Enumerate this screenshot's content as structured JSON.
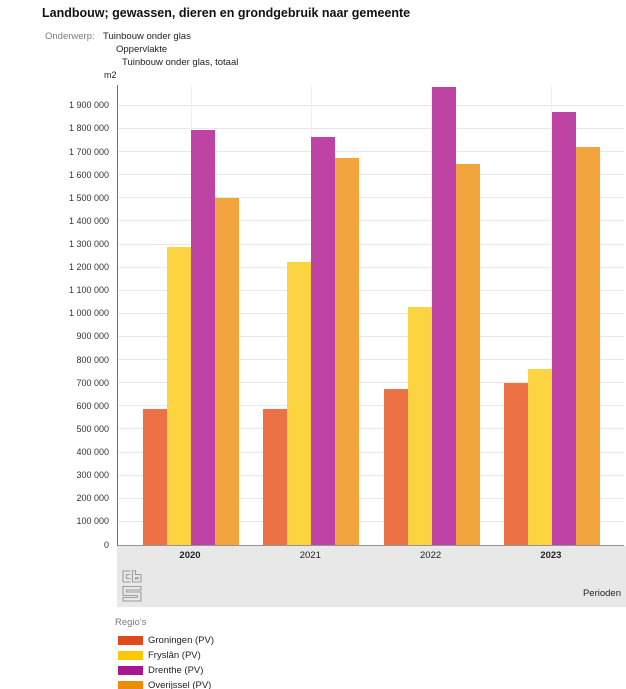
{
  "title": "Landbouw; gewassen, dieren en grondgebruik naar gemeente",
  "subject": {
    "label": "Onderwerp:",
    "lines": [
      "Tuinbouw onder glas",
      "Oppervlakte",
      "Tuinbouw onder glas, totaal"
    ]
  },
  "chart_data": {
    "type": "bar",
    "title": "Landbouw; gewassen, dieren en grondgebruik naar gemeente",
    "unit": "m2",
    "xlabel": "Perioden",
    "legend_title": "Regio's",
    "legend_position": "bottom-left",
    "grid": true,
    "categories": [
      "2020",
      "2021",
      "2022",
      "2023"
    ],
    "bold_categories": [
      "2020",
      "2023"
    ],
    "series": [
      {
        "name": "Groningen (PV)",
        "legend_color": "#E04C19",
        "bar_color": "#EC7145",
        "values": [
          590000,
          590000,
          675000,
          700000
        ]
      },
      {
        "name": "Fryslân (PV)",
        "legend_color": "#FFC805",
        "bar_color": "#FCD341",
        "values": [
          1290000,
          1225000,
          1030000,
          760000
        ]
      },
      {
        "name": "Drenthe (PV)",
        "legend_color": "#A81690",
        "bar_color": "#BE43A5",
        "values": [
          1795000,
          1765000,
          1980000,
          1875000
        ]
      },
      {
        "name": "Overijssel (PV)",
        "legend_color": "#EE8C00",
        "bar_color": "#F2A43D",
        "values": [
          1500000,
          1675000,
          1650000,
          1720000
        ]
      }
    ],
    "ylim": [
      0,
      1990000
    ],
    "y_tick_values": [
      0,
      100000,
      200000,
      300000,
      400000,
      500000,
      600000,
      700000,
      800000,
      900000,
      1000000,
      1100000,
      1200000,
      1300000,
      1400000,
      1500000,
      1600000,
      1700000,
      1800000,
      1900000
    ],
    "y_ticks": [
      "0",
      "100 000",
      "200 000",
      "300 000",
      "400 000",
      "500 000",
      "600 000",
      "700 000",
      "800 000",
      "900 000",
      "1 000 000",
      "1 100 000",
      "1 200 000",
      "1 300 000",
      "1 400 000",
      "1 500 000",
      "1 600 000",
      "1 700 000",
      "1 800 000",
      "1 900 000"
    ]
  },
  "footer": {
    "logo": "cbs-logo",
    "perioden_label": "Perioden"
  }
}
